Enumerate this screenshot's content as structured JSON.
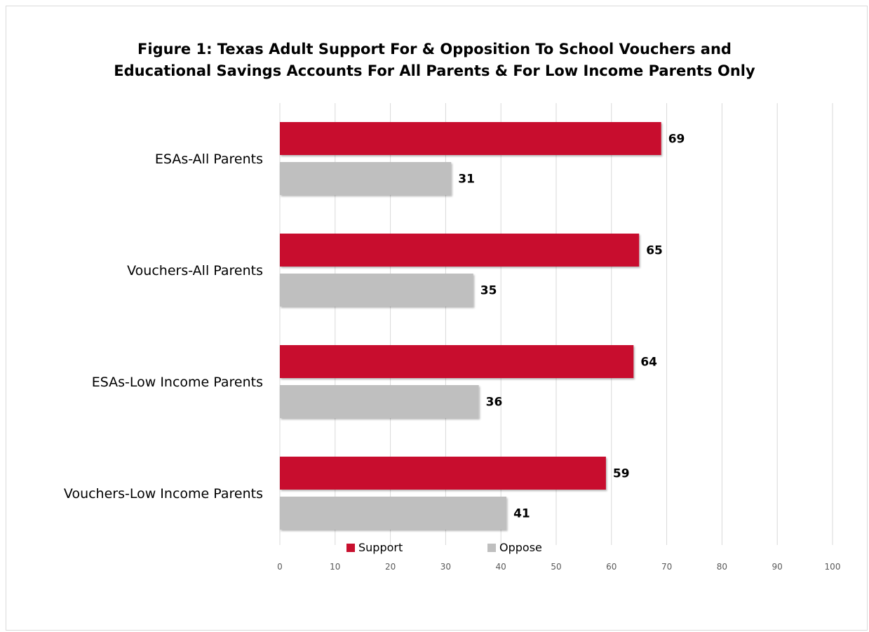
{
  "chart_data": {
    "type": "bar",
    "orientation": "horizontal",
    "title_lines": [
      "Figure 1: Texas Adult Support For & Opposition To School Vouchers and",
      "Educational Savings Accounts For All Parents & For Low Income Parents Only"
    ],
    "categories": [
      "ESAs-All Parents",
      "Vouchers-All Parents",
      "ESAs-Low Income Parents",
      "Vouchers-Low Income Parents"
    ],
    "series": [
      {
        "name": "Support",
        "color": "#c8102e",
        "values": [
          69,
          65,
          64,
          59
        ]
      },
      {
        "name": "Oppose",
        "color": "#bfbfbf",
        "values": [
          31,
          35,
          36,
          41
        ]
      }
    ],
    "xlim": [
      0,
      100
    ],
    "x_ticks": [
      "0",
      "10",
      "20",
      "30",
      "40",
      "50",
      "60",
      "70",
      "80",
      "90",
      "100"
    ],
    "grid": true,
    "legend_position": "bottom",
    "data_labels": true
  }
}
